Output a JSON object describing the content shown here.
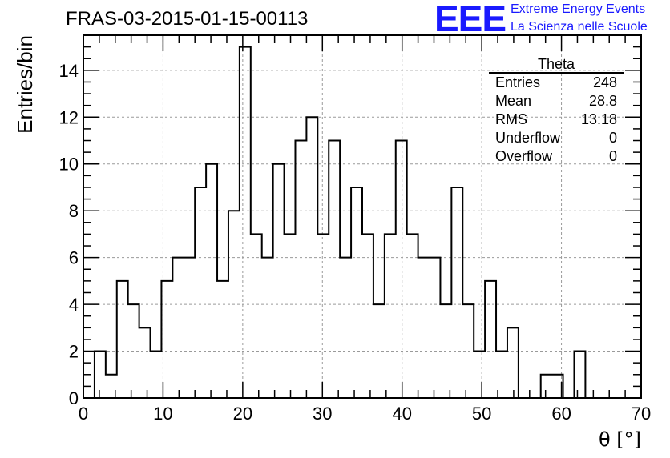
{
  "header": {
    "run_title": "FRAS-03-2015-01-15-00113",
    "logo_text": "EEE",
    "logo_line1": "Extreme Energy Events",
    "logo_line2": "La Scienza nelle Scuole",
    "logo_color": "#1a1aff"
  },
  "stats_box": {
    "title": "Theta",
    "rows": [
      {
        "label": "Entries",
        "value": "248"
      },
      {
        "label": "Mean",
        "value": "28.8"
      },
      {
        "label": "RMS",
        "value": "13.18"
      },
      {
        "label": "Underflow",
        "value": "0"
      },
      {
        "label": "Overflow",
        "value": "0"
      }
    ]
  },
  "chart_data": {
    "type": "bar",
    "subtype": "histogram-step",
    "xlabel": "θ [°]",
    "ylabel": "Entries/bin",
    "xlim": [
      0,
      70
    ],
    "ylim": [
      0,
      15.5
    ],
    "x_ticks": [
      0,
      10,
      20,
      30,
      40,
      50,
      60,
      70
    ],
    "y_ticks": [
      0,
      2,
      4,
      6,
      8,
      10,
      12,
      14
    ],
    "grid": true,
    "bin_width": 1.4,
    "bin_start": 1.4,
    "values": [
      2,
      1,
      5,
      4,
      3,
      2,
      5,
      6,
      6,
      9,
      10,
      5,
      8,
      15,
      7,
      6,
      10,
      7,
      11,
      12,
      7,
      11,
      6,
      9,
      7,
      4,
      7,
      11,
      7,
      6,
      6,
      4,
      9,
      4,
      2,
      5,
      2,
      3,
      0,
      0,
      1,
      1,
      0,
      2,
      0
    ]
  }
}
